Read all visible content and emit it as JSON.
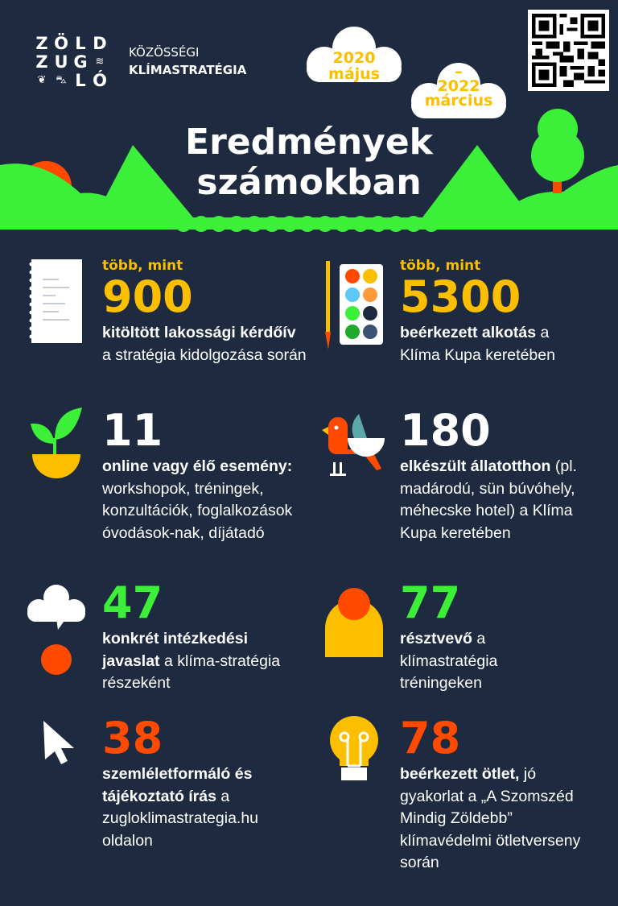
{
  "colors": {
    "background": "#1d2a3f",
    "green": "#3cf03a",
    "yellow": "#fbbf00",
    "orange": "#ff4a00",
    "white": "#ffffff"
  },
  "header": {
    "logo_letters": [
      "Z",
      "Ö",
      "L",
      "D",
      "Z",
      "U",
      "G",
      "L",
      "Ó"
    ],
    "brand_line1": "KÖZÖSSÉGI",
    "brand_line2": "KLÍMASTRATÉGIA",
    "date_start_year": "2020",
    "date_start_month": "május",
    "date_dash": "–",
    "date_end_year": "2022",
    "date_end_month": "március",
    "title_line1": "Eredmények",
    "title_line2": "számokban"
  },
  "stats": [
    {
      "icon": "notepad-icon",
      "label": "több, mint",
      "number": "900",
      "color": "yellow",
      "bold": "kitöltött lakossági kérdőív",
      "rest": " a stratégia kidolgozása során"
    },
    {
      "icon": "paint-palette-icon",
      "label": "több, mint",
      "number": "5300",
      "color": "yellow",
      "bold": "beérkezett alkotás",
      "rest": " a Klíma Kupa keretében"
    },
    {
      "icon": "plant-pot-icon",
      "label": "",
      "number": "11",
      "color": "white",
      "bold": "online vagy élő esemény:",
      "rest": " workshopok, tréningek, konzultációk, foglalkozások óvodások-nak, díjátadó"
    },
    {
      "icon": "bird-icon",
      "label": "",
      "number": "180",
      "color": "white",
      "bold": "elkészült állatotthon",
      "rest": " (pl. madárodú, sün búvóhely, méhecske hotel) a Klíma Kupa keretében"
    },
    {
      "icon": "speech-cloud-icon",
      "label": "",
      "number": "47",
      "color": "green",
      "bold": "konkrét intézkedési javaslat",
      "rest": " a klíma-stratégia részeként"
    },
    {
      "icon": "person-icon",
      "label": "",
      "number": "77",
      "color": "green",
      "bold": "résztvevő",
      "rest": " a klímastratégia tréningeken"
    },
    {
      "icon": "cursor-icon",
      "label": "",
      "number": "38",
      "color": "orange",
      "bold": "szemléletformáló és tájékoztató írás",
      "rest": " a zugloklimastrategia.hu oldalon"
    },
    {
      "icon": "lightbulb-icon",
      "label": "",
      "number": "78",
      "color": "orange",
      "bold": "beérkezett ötlet,",
      "rest": " jó gyakorlat a „A Szomszéd Mindig Zöldebb” klímavédelmi ötletverseny során"
    }
  ]
}
